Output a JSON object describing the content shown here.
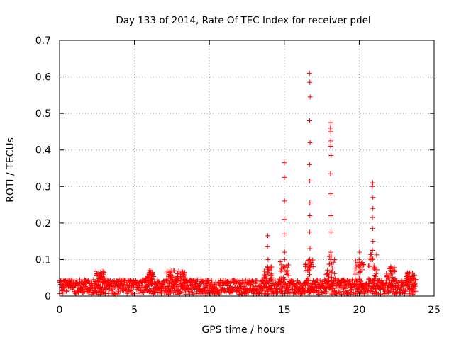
{
  "chart_data": {
    "type": "scatter",
    "title": "Day 133 of 2014, Rate Of TEC Index for receiver pdel",
    "xlabel": "GPS time / hours",
    "ylabel": "ROTI / TECUs",
    "xlim": [
      0,
      25
    ],
    "ylim": [
      0,
      0.7
    ],
    "xticks": [
      "0",
      "5",
      "10",
      "15",
      "20",
      "25"
    ],
    "yticks": [
      "0",
      "0.1",
      "0.2",
      "0.3",
      "0.4",
      "0.5",
      "0.6",
      "0.7"
    ],
    "grid": true,
    "marker": "+",
    "color": "#ff0000",
    "series": [
      {
        "name": "ROTI",
        "baseline_band": {
          "x_range": [
            0,
            23.8
          ],
          "y_range": [
            0.005,
            0.045
          ]
        },
        "spikes": [
          {
            "x": 13.9,
            "y": [
              0.165,
              0.135,
              0.1,
              0.08,
              0.06
            ]
          },
          {
            "x": 15.0,
            "y": [
              0.365,
              0.325,
              0.26,
              0.21,
              0.17,
              0.12,
              0.1,
              0.08
            ]
          },
          {
            "x": 16.7,
            "y": [
              0.61,
              0.585,
              0.545,
              0.48,
              0.42,
              0.36,
              0.315,
              0.255,
              0.22,
              0.175,
              0.13,
              0.1,
              0.08
            ]
          },
          {
            "x": 18.1,
            "y": [
              0.475,
              0.46,
              0.45,
              0.425,
              0.41,
              0.385,
              0.335,
              0.28,
              0.22,
              0.175,
              0.12,
              0.1
            ]
          },
          {
            "x": 20.9,
            "y": [
              0.31,
              0.3,
              0.27,
              0.24,
              0.215,
              0.185,
              0.15,
              0.125,
              0.1
            ]
          },
          {
            "x": 20.0,
            "y": [
              0.12,
              0.1,
              0.08
            ]
          },
          {
            "x": 22.1,
            "y": [
              0.08,
              0.07,
              0.06
            ]
          },
          {
            "x": 6.0,
            "y": [
              0.07,
              0.06,
              0.05
            ]
          },
          {
            "x": 8.1,
            "y": [
              0.06,
              0.05
            ]
          },
          {
            "x": 2.7,
            "y": [
              0.055,
              0.05
            ]
          },
          {
            "x": 7.4,
            "y": [
              0.055,
              0.05
            ]
          },
          {
            "x": 23.4,
            "y": [
              0.05,
              0.045
            ]
          }
        ]
      }
    ]
  }
}
